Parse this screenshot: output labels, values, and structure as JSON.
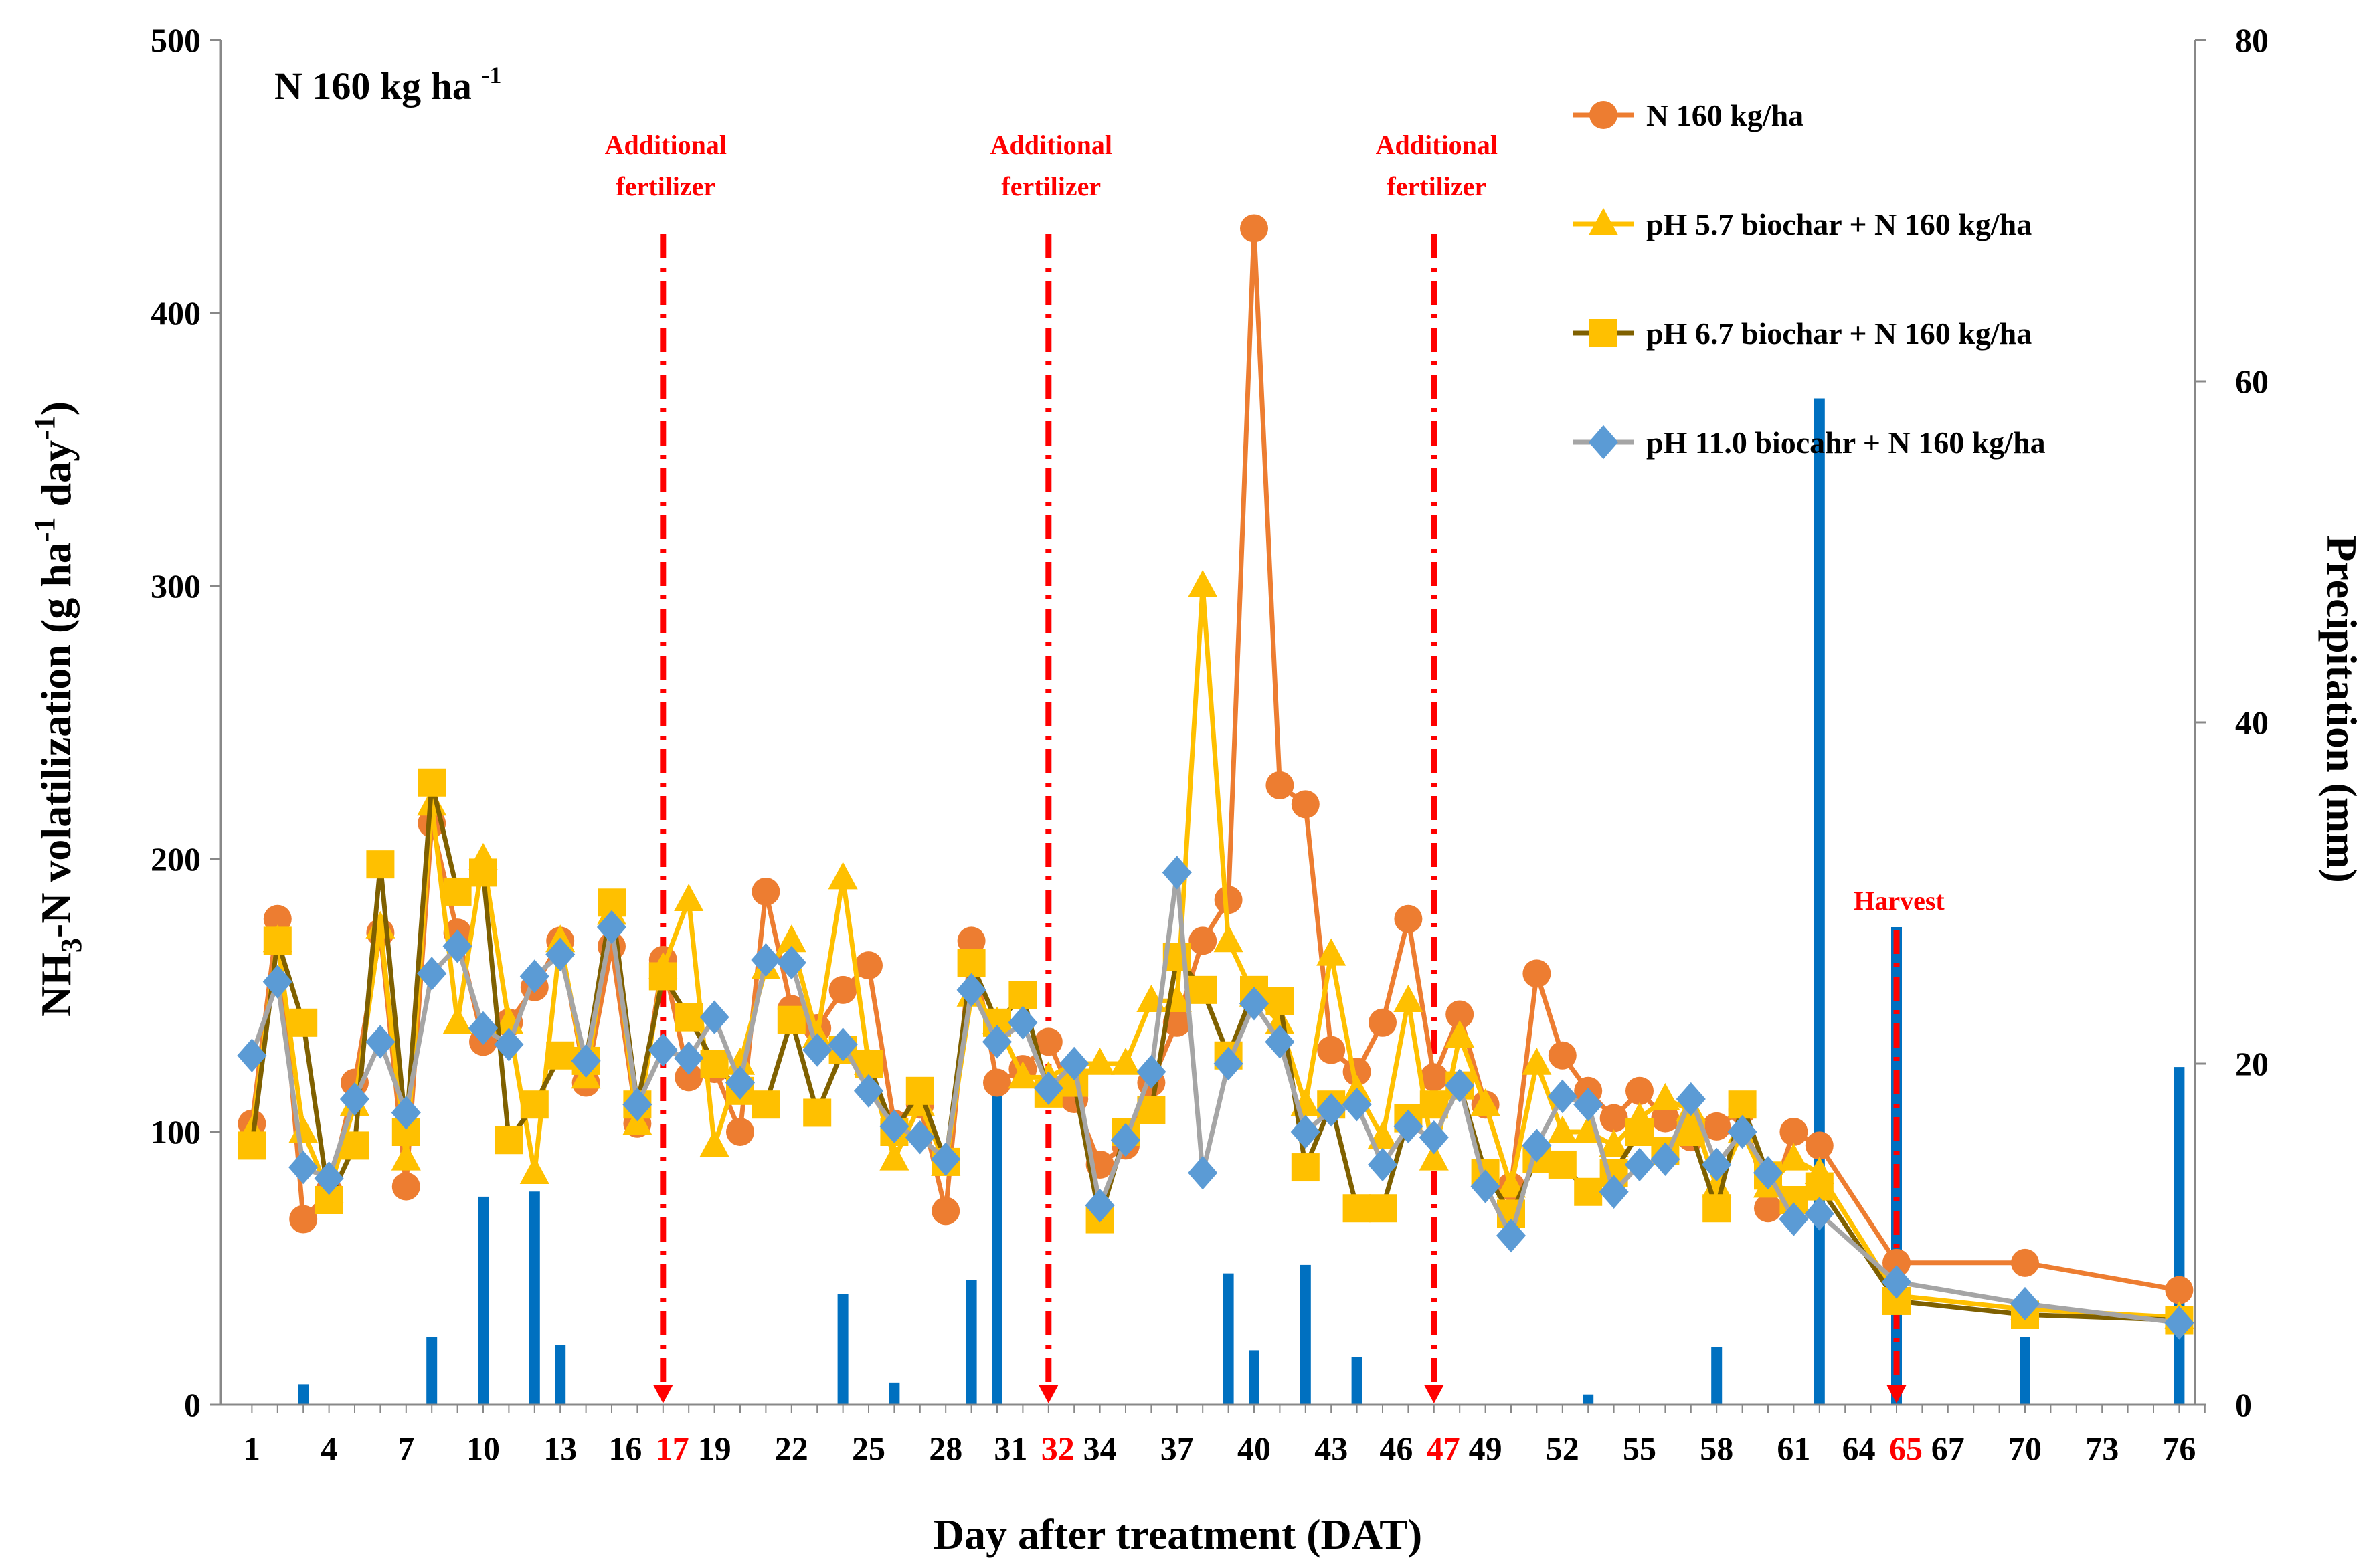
{
  "chart_data": {
    "type": "line",
    "panel_title": "N 160 kg ha",
    "panel_title_sup": "-1",
    "xlabel": "Day after treatment (DAT)",
    "ylabel_left": "NH3-N volatilization (g ha-1 day-1)",
    "ylabel_right": "Precipitation (mm)",
    "ylim_left": [
      0,
      500
    ],
    "ylim_right": [
      0,
      80
    ],
    "yticks_left": [
      0,
      100,
      200,
      300,
      400,
      500
    ],
    "yticks_right": [
      0,
      20,
      40,
      60,
      80
    ],
    "xlim": [
      0.5,
      78
    ],
    "xticks": [
      1,
      4,
      7,
      10,
      13,
      16,
      17,
      19,
      22,
      25,
      28,
      31,
      32,
      34,
      37,
      40,
      43,
      46,
      47,
      49,
      52,
      55,
      58,
      61,
      64,
      65,
      67,
      70,
      73,
      76
    ],
    "xticks_red": [
      17,
      32,
      47,
      65
    ],
    "annotations": [
      {
        "x": 17,
        "text": [
          "Additional",
          "fertilizer"
        ]
      },
      {
        "x": 32,
        "text": [
          "Additional",
          "fertilizer"
        ]
      },
      {
        "x": 47,
        "text": [
          "Additional",
          "fertilizer"
        ]
      },
      {
        "x": 65,
        "text": [
          "Harvest"
        ]
      }
    ],
    "legend_position": "top-right",
    "series": [
      {
        "name": "N 160 kg/ha",
        "marker": "circle",
        "color": "#ED7D31",
        "line_color": "#ED7D31",
        "x": [
          1,
          2,
          3,
          4,
          5,
          6,
          7,
          8,
          9,
          10,
          11,
          12,
          13,
          14,
          15,
          16,
          17,
          18,
          19,
          20,
          21,
          22,
          23,
          24,
          25,
          26,
          27,
          28,
          29,
          30,
          31,
          32,
          33,
          34,
          35,
          36,
          37,
          38,
          39,
          40,
          41,
          42,
          43,
          44,
          45,
          46,
          47,
          48,
          49,
          50,
          51,
          52,
          53,
          54,
          55,
          56,
          57,
          58,
          59,
          60,
          61,
          62,
          65,
          70,
          76
        ],
        "values": [
          103,
          178,
          68,
          78,
          118,
          173,
          80,
          213,
          173,
          133,
          140,
          153,
          170,
          118,
          168,
          103,
          163,
          120,
          123,
          100,
          188,
          145,
          138,
          152,
          161,
          103,
          110,
          71,
          170,
          118,
          123,
          133,
          112,
          88,
          95,
          118,
          140,
          170,
          185,
          431,
          227,
          220,
          130,
          122,
          140,
          178,
          120,
          143,
          110,
          80,
          158,
          128,
          115,
          105,
          115,
          105,
          98,
          102,
          108,
          72,
          100,
          95,
          52,
          52,
          42
        ]
      },
      {
        "name": "pH 5.7 biochar + N 160 kg/ha",
        "marker": "triangle",
        "color": "#FFC000",
        "line_color": "#FFC000",
        "x": [
          1,
          2,
          3,
          4,
          5,
          6,
          7,
          8,
          9,
          10,
          11,
          12,
          13,
          14,
          15,
          16,
          17,
          18,
          19,
          20,
          21,
          22,
          23,
          24,
          25,
          26,
          27,
          28,
          29,
          30,
          31,
          32,
          33,
          34,
          35,
          36,
          37,
          38,
          39,
          40,
          41,
          42,
          43,
          44,
          45,
          46,
          47,
          48,
          49,
          50,
          51,
          52,
          53,
          54,
          55,
          56,
          57,
          58,
          59,
          60,
          61,
          62,
          65,
          70,
          76
        ],
        "values": [
          100,
          170,
          100,
          78,
          110,
          175,
          90,
          220,
          140,
          200,
          140,
          85,
          170,
          120,
          180,
          103,
          160,
          185,
          95,
          125,
          160,
          170,
          135,
          193,
          125,
          90,
          110,
          88,
          150,
          140,
          120,
          120,
          125,
          125,
          125,
          148,
          148,
          300,
          170,
          150,
          140,
          110,
          165,
          115,
          98,
          148,
          90,
          135,
          110,
          80,
          125,
          100,
          100,
          95,
          105,
          112,
          108,
          80,
          100,
          80,
          90,
          85,
          40,
          35,
          32
        ]
      },
      {
        "name": "pH 6.7 biochar + N 160 kg/ha",
        "marker": "square",
        "color": "#FFC000",
        "line_color": "#7F6000",
        "x": [
          1,
          2,
          3,
          4,
          5,
          6,
          7,
          8,
          9,
          10,
          11,
          12,
          13,
          14,
          15,
          16,
          17,
          18,
          19,
          20,
          21,
          22,
          23,
          24,
          25,
          26,
          27,
          28,
          29,
          30,
          31,
          32,
          33,
          34,
          35,
          36,
          37,
          38,
          39,
          40,
          41,
          42,
          43,
          44,
          45,
          46,
          47,
          48,
          49,
          50,
          51,
          52,
          53,
          54,
          55,
          56,
          57,
          58,
          59,
          60,
          61,
          62,
          65,
          70,
          76
        ],
        "values": [
          95,
          170,
          140,
          75,
          95,
          198,
          100,
          228,
          188,
          195,
          97,
          110,
          128,
          126,
          184,
          110,
          157,
          142,
          125,
          115,
          110,
          141,
          107,
          130,
          125,
          100,
          115,
          89,
          162,
          140,
          150,
          114,
          118,
          68,
          100,
          108,
          164,
          152,
          128,
          152,
          148,
          87,
          110,
          72,
          72,
          105,
          110,
          117,
          85,
          70,
          90,
          88,
          78,
          85,
          100,
          93,
          100,
          72,
          110,
          84,
          75,
          80,
          38,
          33,
          31
        ]
      },
      {
        "name": "pH 11.0 biocahr + N 160 kg/ha",
        "marker": "diamond",
        "color": "#5B9BD5",
        "line_color": "#A5A5A5",
        "x": [
          1,
          2,
          3,
          4,
          5,
          6,
          7,
          8,
          9,
          10,
          11,
          12,
          13,
          14,
          15,
          16,
          17,
          18,
          19,
          20,
          21,
          22,
          23,
          24,
          25,
          26,
          27,
          28,
          29,
          30,
          31,
          32,
          33,
          34,
          35,
          36,
          37,
          38,
          39,
          40,
          41,
          42,
          43,
          44,
          45,
          46,
          47,
          48,
          49,
          50,
          51,
          52,
          53,
          54,
          55,
          56,
          57,
          58,
          59,
          60,
          61,
          62,
          65,
          70,
          76
        ],
        "values": [
          128,
          155,
          87,
          83,
          112,
          133,
          107,
          158,
          168,
          138,
          132,
          157,
          165,
          126,
          175,
          110,
          130,
          127,
          142,
          118,
          163,
          162,
          130,
          132,
          115,
          102,
          98,
          90,
          152,
          133,
          140,
          116,
          125,
          73,
          97,
          122,
          195,
          85,
          125,
          147,
          133,
          100,
          108,
          110,
          88,
          102,
          98,
          117,
          80,
          62,
          95,
          113,
          110,
          78,
          88,
          90,
          112,
          88,
          100,
          85,
          68,
          70,
          45,
          37,
          30
        ]
      }
    ],
    "precipitation": {
      "name": "Precipitation",
      "color": "#0070C0",
      "x": [
        3,
        8,
        10,
        12,
        13,
        24,
        26,
        29,
        30,
        39,
        40,
        42,
        44,
        53,
        58,
        62,
        65,
        70,
        76
      ],
      "values": [
        1.2,
        4,
        12.2,
        12.5,
        3.5,
        6.5,
        1.3,
        7.3,
        19,
        7.7,
        3.2,
        8.2,
        2.8,
        0.6,
        3.4,
        59,
        28,
        4,
        19.8
      ]
    }
  }
}
